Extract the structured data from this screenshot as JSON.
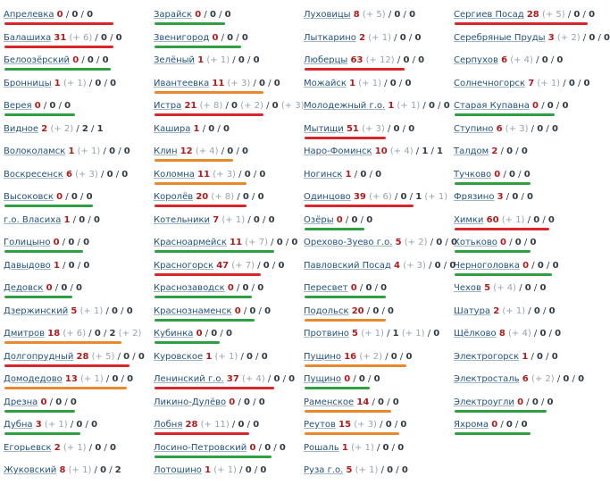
{
  "colors": {
    "green": "#2ea043",
    "red": "#d9262c",
    "orange": "#e9892d"
  },
  "columns": [
    {
      "items": [
        {
          "name": "Апрелевка",
          "n1": "0",
          "delta": "",
          "n2": "0",
          "n3": "0",
          "bar": "red",
          "bar_w": 0.8
        },
        {
          "name": "Балашиха",
          "n1": "31",
          "delta": "(+ 6)",
          "n2": "0",
          "n3": "0",
          "bar": "red",
          "bar_w": 0.8
        },
        {
          "name": "Белоозёрский",
          "n1": "0",
          "delta": "",
          "n2": "0",
          "n3": "0",
          "bar": "green",
          "bar_w": 0.78
        },
        {
          "name": "Бронницы",
          "n1": "1",
          "delta": "(+ 1)",
          "n2": "0",
          "n3": "0",
          "bar": "",
          "bar_w": 0
        },
        {
          "name": "Верея",
          "n1": "0",
          "delta": "",
          "n2": "0",
          "n3": "0",
          "bar": "green",
          "bar_w": 0.52
        },
        {
          "name": "Видное",
          "n1": "2",
          "delta": "(+ 2)",
          "n2": "2",
          "n3": "1",
          "bar": "",
          "bar_w": 0
        },
        {
          "name": "Волоколамск",
          "n1": "1",
          "delta": "(+ 1)",
          "n2": "0",
          "n3": "0",
          "bar": "",
          "bar_w": 0
        },
        {
          "name": "Воскресенск",
          "n1": "6",
          "delta": "(+ 3)",
          "n2": "0",
          "n3": "0",
          "bar": "",
          "bar_w": 0
        },
        {
          "name": "Высоковск",
          "n1": "0",
          "delta": "",
          "n2": "0",
          "n3": "0",
          "bar": "green",
          "bar_w": 0.65
        },
        {
          "name": "г.о. Власиха",
          "n1": "1",
          "delta": "",
          "n2": "0",
          "n3": "0",
          "bar": "",
          "bar_w": 0
        },
        {
          "name": "Голицыно",
          "n1": "0",
          "delta": "",
          "n2": "0",
          "n3": "0",
          "bar": "green",
          "bar_w": 0.58
        },
        {
          "name": "Давыдово",
          "n1": "1",
          "delta": "",
          "n2": "0",
          "n3": "0",
          "bar": "",
          "bar_w": 0
        },
        {
          "name": "Дедовск",
          "n1": "0",
          "delta": "",
          "n2": "0",
          "n3": "0",
          "bar": "green",
          "bar_w": 0.5
        },
        {
          "name": "Дзержинский",
          "n1": "5",
          "delta": "(+ 1)",
          "n2": "0",
          "n3": "0",
          "bar": "",
          "bar_w": 0
        },
        {
          "name": "Дмитров",
          "n1": "18",
          "delta": "(+ 6)",
          "n2": "0",
          "n3": "2",
          "n3delta": "(+ 2)",
          "bar": "orange",
          "bar_w": 0.86
        },
        {
          "name": "Долгопрудный",
          "n1": "28",
          "delta": "(+ 5)",
          "n2": "0",
          "n3": "0",
          "bar": "red",
          "bar_w": 0.92
        },
        {
          "name": "Домодедово",
          "n1": "13",
          "delta": "(+ 1)",
          "n2": "0",
          "n3": "0",
          "bar": "orange",
          "bar_w": 0.9
        },
        {
          "name": "Дрезна",
          "n1": "0",
          "delta": "",
          "n2": "0",
          "n3": "0",
          "bar": "green",
          "bar_w": 0.52
        },
        {
          "name": "Дубна",
          "n1": "3",
          "delta": "(+ 1)",
          "n2": "0",
          "n3": "0",
          "bar": "green",
          "bar_w": 0.56
        },
        {
          "name": "Егорьевск",
          "n1": "2",
          "delta": "(+ 1)",
          "n2": "0",
          "n3": "0",
          "bar": "",
          "bar_w": 0
        },
        {
          "name": "Жуковский",
          "n1": "8",
          "delta": "(+ 1)",
          "n2": "0",
          "n3": "2",
          "bar": "",
          "bar_w": 0
        }
      ]
    },
    {
      "items": [
        {
          "name": "Зарайск",
          "n1": "0",
          "delta": "",
          "n2": "0",
          "n3": "0",
          "bar": "green",
          "bar_w": 0.52
        },
        {
          "name": "Звенигород",
          "n1": "0",
          "delta": "",
          "n2": "0",
          "n3": "0",
          "bar": "green",
          "bar_w": 0.64
        },
        {
          "name": "Зелёный",
          "n1": "1",
          "delta": "(+ 1)",
          "n2": "0",
          "n3": "0",
          "bar": "",
          "bar_w": 0
        },
        {
          "name": "Ивантеевка",
          "n1": "11",
          "delta": "(+ 3)",
          "n2": "0",
          "n3": "0",
          "bar": "orange",
          "bar_w": 0.8
        },
        {
          "name": "Истра",
          "n1": "21",
          "delta": "(+ 8)",
          "n2": "0",
          "n2delta": "(+ 2)",
          "n3": "0",
          "n3delta": "(+ 3)",
          "bar": "red",
          "bar_w": 0.8
        },
        {
          "name": "Кашира",
          "n1": "1",
          "delta": "",
          "n2": "0",
          "n3": "0",
          "bar": "",
          "bar_w": 0
        },
        {
          "name": "Клин",
          "n1": "12",
          "delta": "(+ 4)",
          "n2": "0",
          "n3": "0",
          "bar": "orange",
          "bar_w": 0.58
        },
        {
          "name": "Коломна",
          "n1": "11",
          "delta": "(+ 3)",
          "n2": "0",
          "n3": "0",
          "bar": "orange",
          "bar_w": 0.68
        },
        {
          "name": "Королёв",
          "n1": "20",
          "delta": "(+ 8)",
          "n2": "0",
          "n3": "0",
          "bar": "red",
          "bar_w": 0.68
        },
        {
          "name": "Котельники",
          "n1": "7",
          "delta": "(+ 1)",
          "n2": "0",
          "n3": "0",
          "bar": "",
          "bar_w": 0
        },
        {
          "name": "Красноармейск",
          "n1": "11",
          "delta": "(+ 7)",
          "n2": "0",
          "n3": "0",
          "bar": "green",
          "bar_w": 0.88
        },
        {
          "name": "Красногорск",
          "n1": "47",
          "delta": "(+ 7)",
          "n2": "0",
          "n3": "0",
          "bar": "red",
          "bar_w": 0.78
        },
        {
          "name": "Краснозаводск",
          "n1": "0",
          "delta": "",
          "n2": "0",
          "n3": "0",
          "bar": "green",
          "bar_w": 0.72
        },
        {
          "name": "Краснознаменск",
          "n1": "0",
          "delta": "",
          "n2": "0",
          "n3": "0",
          "bar": "green",
          "bar_w": 0.74
        },
        {
          "name": "Кубинка",
          "n1": "0",
          "delta": "",
          "n2": "0",
          "n3": "0",
          "bar": "green",
          "bar_w": 0.48
        },
        {
          "name": "Куровское",
          "n1": "1",
          "delta": "(+ 1)",
          "n2": "0",
          "n3": "0",
          "bar": "",
          "bar_w": 0
        },
        {
          "name": "Ленинский г.о.",
          "n1": "37",
          "delta": "(+ 4)",
          "n2": "0",
          "n3": "0",
          "bar": "red",
          "bar_w": 0.88
        },
        {
          "name": "Ликино-Дулёво",
          "n1": "0",
          "delta": "",
          "n2": "0",
          "n3": "0",
          "bar": "",
          "bar_w": 0
        },
        {
          "name": "Лобня",
          "n1": "28",
          "delta": "(+ 11)",
          "n2": "0",
          "n3": "0",
          "bar": "red",
          "bar_w": 0.7
        },
        {
          "name": "Лосино-Петровский",
          "n1": "0",
          "delta": "",
          "n2": "0",
          "n3": "0",
          "bar": "green",
          "bar_w": 0.86
        },
        {
          "name": "Лотошино",
          "n1": "1",
          "delta": "(+ 1)",
          "n2": "0",
          "n3": "0",
          "bar": "",
          "bar_w": 0
        }
      ]
    },
    {
      "items": [
        {
          "name": "Луховицы",
          "n1": "8",
          "delta": "(+ 5)",
          "n2": "0",
          "n3": "0",
          "bar": "",
          "bar_w": 0
        },
        {
          "name": "Лыткарино",
          "n1": "2",
          "delta": "(+ 1)",
          "n2": "0",
          "n3": "0",
          "bar": "",
          "bar_w": 0
        },
        {
          "name": "Люберцы",
          "n1": "63",
          "delta": "(+ 12)",
          "n2": "0",
          "n3": "0",
          "bar": "red",
          "bar_w": 0.74
        },
        {
          "name": "Можайск",
          "n1": "1",
          "delta": "(+ 1)",
          "n2": "0",
          "n3": "0",
          "bar": "",
          "bar_w": 0
        },
        {
          "name": "Молодежный г.о.",
          "n1": "1",
          "delta": "(+ 1)",
          "n2": "0",
          "n3": "0",
          "bar": "",
          "bar_w": 0
        },
        {
          "name": "Мытищи",
          "n1": "51",
          "delta": "(+ 3)",
          "n2": "0",
          "n3": "0",
          "bar": "red",
          "bar_w": 0.6
        },
        {
          "name": "Наро-Фоминск",
          "n1": "10",
          "delta": "(+ 4)",
          "n2": "1",
          "n3": "1",
          "bar": "",
          "bar_w": 0
        },
        {
          "name": "Ногинск",
          "n1": "1",
          "delta": "",
          "n2": "0",
          "n3": "0",
          "bar": "",
          "bar_w": 0
        },
        {
          "name": "Одинцово",
          "n1": "39",
          "delta": "(+ 6)",
          "n2": "0",
          "n3": "1",
          "n3delta": "(+ 1)",
          "bar": "red",
          "bar_w": 0.8
        },
        {
          "name": "Озёры",
          "n1": "0",
          "delta": "",
          "n2": "0",
          "n3": "0",
          "bar": "green",
          "bar_w": 0.44
        },
        {
          "name": "Орехово-Зуево г.о.",
          "n1": "5",
          "delta": "(+ 2)",
          "n2": "0",
          "n3": "0",
          "bar": "",
          "bar_w": 0
        },
        {
          "name": "Павловский Посад",
          "n1": "4",
          "delta": "(+ 3)",
          "n2": "0",
          "n3": "0",
          "bar": "",
          "bar_w": 0
        },
        {
          "name": "Пересвет",
          "n1": "0",
          "delta": "",
          "n2": "0",
          "n3": "0",
          "bar": "green",
          "bar_w": 0.6
        },
        {
          "name": "Подольск",
          "n1": "20",
          "delta": "",
          "n2": "0",
          "n3": "0",
          "bar": "orange",
          "bar_w": 0.6
        },
        {
          "name": "Протвино",
          "n1": "5",
          "delta": "(+ 1)",
          "n2": "1",
          "n2delta": "(+ 1)",
          "n3": "0",
          "bar": "",
          "bar_w": 0
        },
        {
          "name": "Пущино",
          "n1": "16",
          "delta": "(+ 2)",
          "n2": "0",
          "n3": "0",
          "bar": "orange",
          "bar_w": 0.75
        },
        {
          "name": "Пущино",
          "n1": "0",
          "delta": "",
          "n2": "0",
          "n3": "0",
          "bar": "green",
          "bar_w": 0.48
        },
        {
          "name": "Раменское",
          "n1": "14",
          "delta": "",
          "n2": "0",
          "n3": "0",
          "bar": "orange",
          "bar_w": 0.64
        },
        {
          "name": "Реутов",
          "n1": "15",
          "delta": "(+ 3)",
          "n2": "0",
          "n3": "0",
          "bar": "orange",
          "bar_w": 0.7
        },
        {
          "name": "Рошаль",
          "n1": "1",
          "delta": "(+ 1)",
          "n2": "0",
          "n3": "0",
          "bar": "",
          "bar_w": 0
        },
        {
          "name": "Руза г.о.",
          "n1": "5",
          "delta": "(+ 1)",
          "n2": "0",
          "n3": "0",
          "bar": "",
          "bar_w": 0
        }
      ]
    },
    {
      "items": [
        {
          "name": "Сергиев Посад",
          "n1": "28",
          "delta": "(+ 5)",
          "n2": "0",
          "n3": "0",
          "bar": "red",
          "bar_w": 0.98
        },
        {
          "name": "Серебряные Пруды",
          "n1": "3",
          "delta": "(+ 2)",
          "n2": "0",
          "n3": "0",
          "bar": "",
          "bar_w": 0
        },
        {
          "name": "Серпухов",
          "n1": "6",
          "delta": "(+ 4)",
          "n2": "0",
          "n3": "0",
          "bar": "",
          "bar_w": 0
        },
        {
          "name": "Солнечногорск",
          "n1": "7",
          "delta": "(+ 1)",
          "n2": "0",
          "n3": "0",
          "bar": "",
          "bar_w": 0
        },
        {
          "name": "Старая Купавна",
          "n1": "0",
          "delta": "",
          "n2": "0",
          "n3": "0",
          "bar": "green",
          "bar_w": 0.74
        },
        {
          "name": "Ступино",
          "n1": "6",
          "delta": "(+ 3)",
          "n2": "0",
          "n3": "0",
          "bar": "",
          "bar_w": 0
        },
        {
          "name": "Талдом",
          "n1": "2",
          "delta": "",
          "n2": "0",
          "n3": "0",
          "bar": "",
          "bar_w": 0
        },
        {
          "name": "Тучково",
          "n1": "0",
          "delta": "",
          "n2": "0",
          "n3": "0",
          "bar": "green",
          "bar_w": 0.56
        },
        {
          "name": "Фрязино",
          "n1": "3",
          "delta": "",
          "n2": "0",
          "n3": "0",
          "bar": "",
          "bar_w": 0
        },
        {
          "name": "Химки",
          "n1": "60",
          "delta": "(+ 1)",
          "n2": "0",
          "n3": "0",
          "bar": "red",
          "bar_w": 0.7
        },
        {
          "name": "Хотьково",
          "n1": "0",
          "delta": "",
          "n2": "0",
          "n3": "0",
          "bar": "green",
          "bar_w": 0.56
        },
        {
          "name": "Черноголовка",
          "n1": "0",
          "delta": "",
          "n2": "0",
          "n3": "0",
          "bar": "green",
          "bar_w": 0.72
        },
        {
          "name": "Чехов",
          "n1": "5",
          "delta": "(+ 4)",
          "n2": "0",
          "n3": "0",
          "bar": "",
          "bar_w": 0
        },
        {
          "name": "Шатура",
          "n1": "2",
          "delta": "(+ 1)",
          "n2": "0",
          "n3": "0",
          "bar": "",
          "bar_w": 0
        },
        {
          "name": "Щёлково",
          "n1": "8",
          "delta": "(+ 4)",
          "n2": "0",
          "n3": "0",
          "bar": "",
          "bar_w": 0
        },
        {
          "name": "Электрогорск",
          "n1": "1",
          "delta": "",
          "n2": "0",
          "n3": "0",
          "bar": "",
          "bar_w": 0
        },
        {
          "name": "Электросталь",
          "n1": "6",
          "delta": "(+ 2)",
          "n2": "0",
          "n3": "0",
          "bar": "",
          "bar_w": 0
        },
        {
          "name": "Электроугли",
          "n1": "0",
          "delta": "",
          "n2": "0",
          "n3": "0",
          "bar": "green",
          "bar_w": 0.68
        },
        {
          "name": "Яхрома",
          "n1": "0",
          "delta": "",
          "n2": "0",
          "n3": "0",
          "bar": "green",
          "bar_w": 0.56
        }
      ]
    }
  ]
}
